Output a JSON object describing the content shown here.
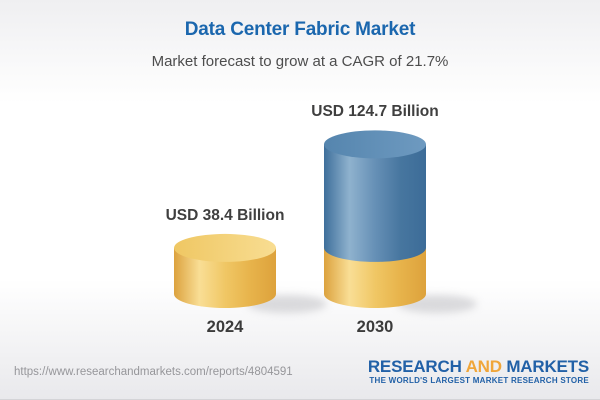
{
  "header": {
    "title": "Data Center Fabric Market",
    "subtitle": "Market forecast to grow at a CAGR of 21.7%"
  },
  "chart_data": {
    "type": "bar",
    "style": "3d-cylinder",
    "title": "Data Center Fabric Market",
    "subtitle": "Market forecast to grow at a CAGR of 21.7%",
    "unit": "USD Billion",
    "cagr_percent": 21.7,
    "categories": [
      "2024",
      "2030"
    ],
    "values": [
      38.4,
      124.7
    ],
    "legend": false,
    "axes": false,
    "bars": [
      {
        "category": "2024",
        "value": 38.4,
        "label": "USD 38.4 Billion",
        "segments": [
          {
            "color_key": "gold",
            "value": 38.4
          }
        ]
      },
      {
        "category": "2030",
        "value": 124.7,
        "label": "USD 124.7 Billion",
        "segments": [
          {
            "color_key": "gold",
            "value": 38.4
          },
          {
            "color_key": "blue",
            "value": 86.3
          }
        ]
      }
    ],
    "colors": {
      "gold_body": [
        "#DCA23E",
        "#F9DE95",
        "#F0C765",
        "#E7B34B",
        "#DDA23C"
      ],
      "gold_cap": [
        "#EFC763",
        "#F8DD92"
      ],
      "blue_body": [
        "#3E6F9B",
        "#8FB2CE",
        "#6690B6",
        "#47769F",
        "#3C6C98"
      ],
      "blue_cap": [
        "#5585AE",
        "#6E9AC0"
      ]
    }
  },
  "footer": {
    "url": "https://www.researchandmarkets.com/reports/4804591",
    "logo": {
      "word1": "RESEARCH",
      "word2": "AND",
      "word3": "MARKETS",
      "tagline": "THE WORLD'S LARGEST MARKET RESEARCH STORE"
    }
  },
  "theme": {
    "title_blue": "#1B67AE",
    "text_dark": "#3F3F3F",
    "logo_blue": "#2261A7",
    "logo_orange": "#F0A63A",
    "shadow_gray": "#B9B9BE"
  }
}
